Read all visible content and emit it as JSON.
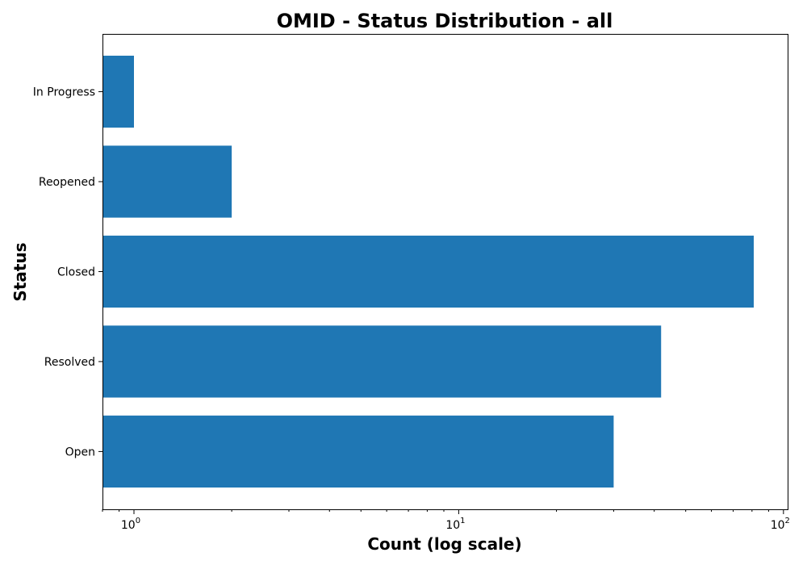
{
  "chart_data": {
    "type": "bar",
    "orientation": "horizontal",
    "title": "OMID - Status Distribution - all",
    "xlabel": "Count (log scale)",
    "ylabel": "Status",
    "x_scale": "log",
    "xlim": [
      0.8,
      103
    ],
    "x_ticks": [
      {
        "value": 1,
        "base": "10",
        "exp": "0"
      },
      {
        "value": 10,
        "base": "10",
        "exp": "1"
      },
      {
        "value": 100,
        "base": "10",
        "exp": "2"
      }
    ],
    "categories": [
      "Open",
      "Resolved",
      "Closed",
      "Reopened",
      "In Progress"
    ],
    "values": [
      30,
      42,
      81,
      2,
      1
    ],
    "bar_color": "#1f77b4",
    "grid": false,
    "legend": "none"
  }
}
